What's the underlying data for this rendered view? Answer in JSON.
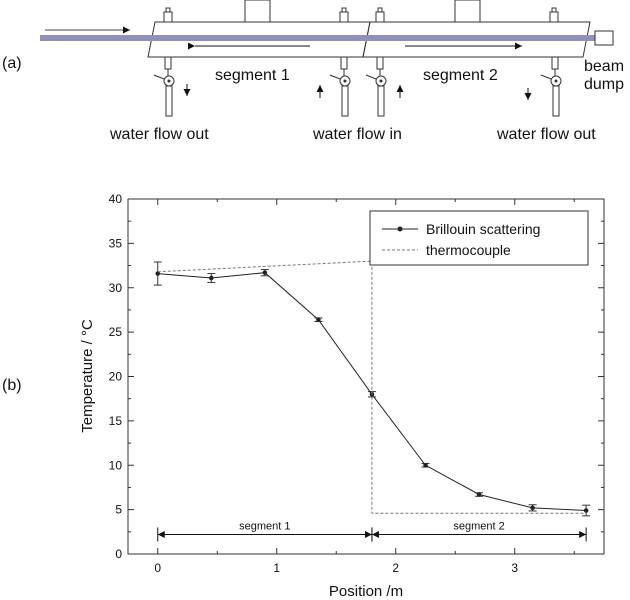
{
  "panel_a": {
    "label": "(a)",
    "segment1_label": "segment 1",
    "segment2_label": "segment 2",
    "beam_dump_line1": "beam",
    "beam_dump_line2": "dump",
    "water_out_left": "water flow out",
    "water_in": "water flow in",
    "water_out_right": "water flow out",
    "colors": {
      "beam": "#9090b8",
      "outline": "#333333"
    }
  },
  "panel_b": {
    "label": "(b)"
  },
  "chart_data": {
    "type": "line",
    "xlabel": "Position /m",
    "ylabel": "Temperature / °C",
    "xlim": [
      -0.25,
      3.75
    ],
    "ylim": [
      0,
      40
    ],
    "xticks": [
      0,
      1,
      2,
      3
    ],
    "yticks": [
      0,
      5,
      10,
      15,
      20,
      25,
      30,
      35,
      40
    ],
    "legend_position": "top-right",
    "series": [
      {
        "name": "Brillouin scattering",
        "style": "solid-markers",
        "color": "#222222",
        "x": [
          0,
          0.45,
          0.9,
          1.35,
          1.8,
          2.25,
          2.7,
          3.15,
          3.6
        ],
        "y": [
          31.6,
          31.1,
          31.7,
          26.4,
          18.0,
          10.0,
          6.7,
          5.2,
          4.9
        ],
        "yerr": [
          1.3,
          0.5,
          0.35,
          0.2,
          0.3,
          0.2,
          0.2,
          0.35,
          0.6
        ]
      },
      {
        "name": "thermocouple",
        "style": "dashed",
        "color": "#777777",
        "x": [
          0,
          1.8,
          1.8,
          3.6
        ],
        "y": [
          31.8,
          33.0,
          4.6,
          4.6
        ]
      }
    ],
    "annotations": [
      {
        "text": "segment 1",
        "x_from": 0,
        "x_to": 1.8,
        "y": 2.2
      },
      {
        "text": "segment 2",
        "x_from": 1.8,
        "x_to": 3.6,
        "y": 2.2
      }
    ]
  }
}
